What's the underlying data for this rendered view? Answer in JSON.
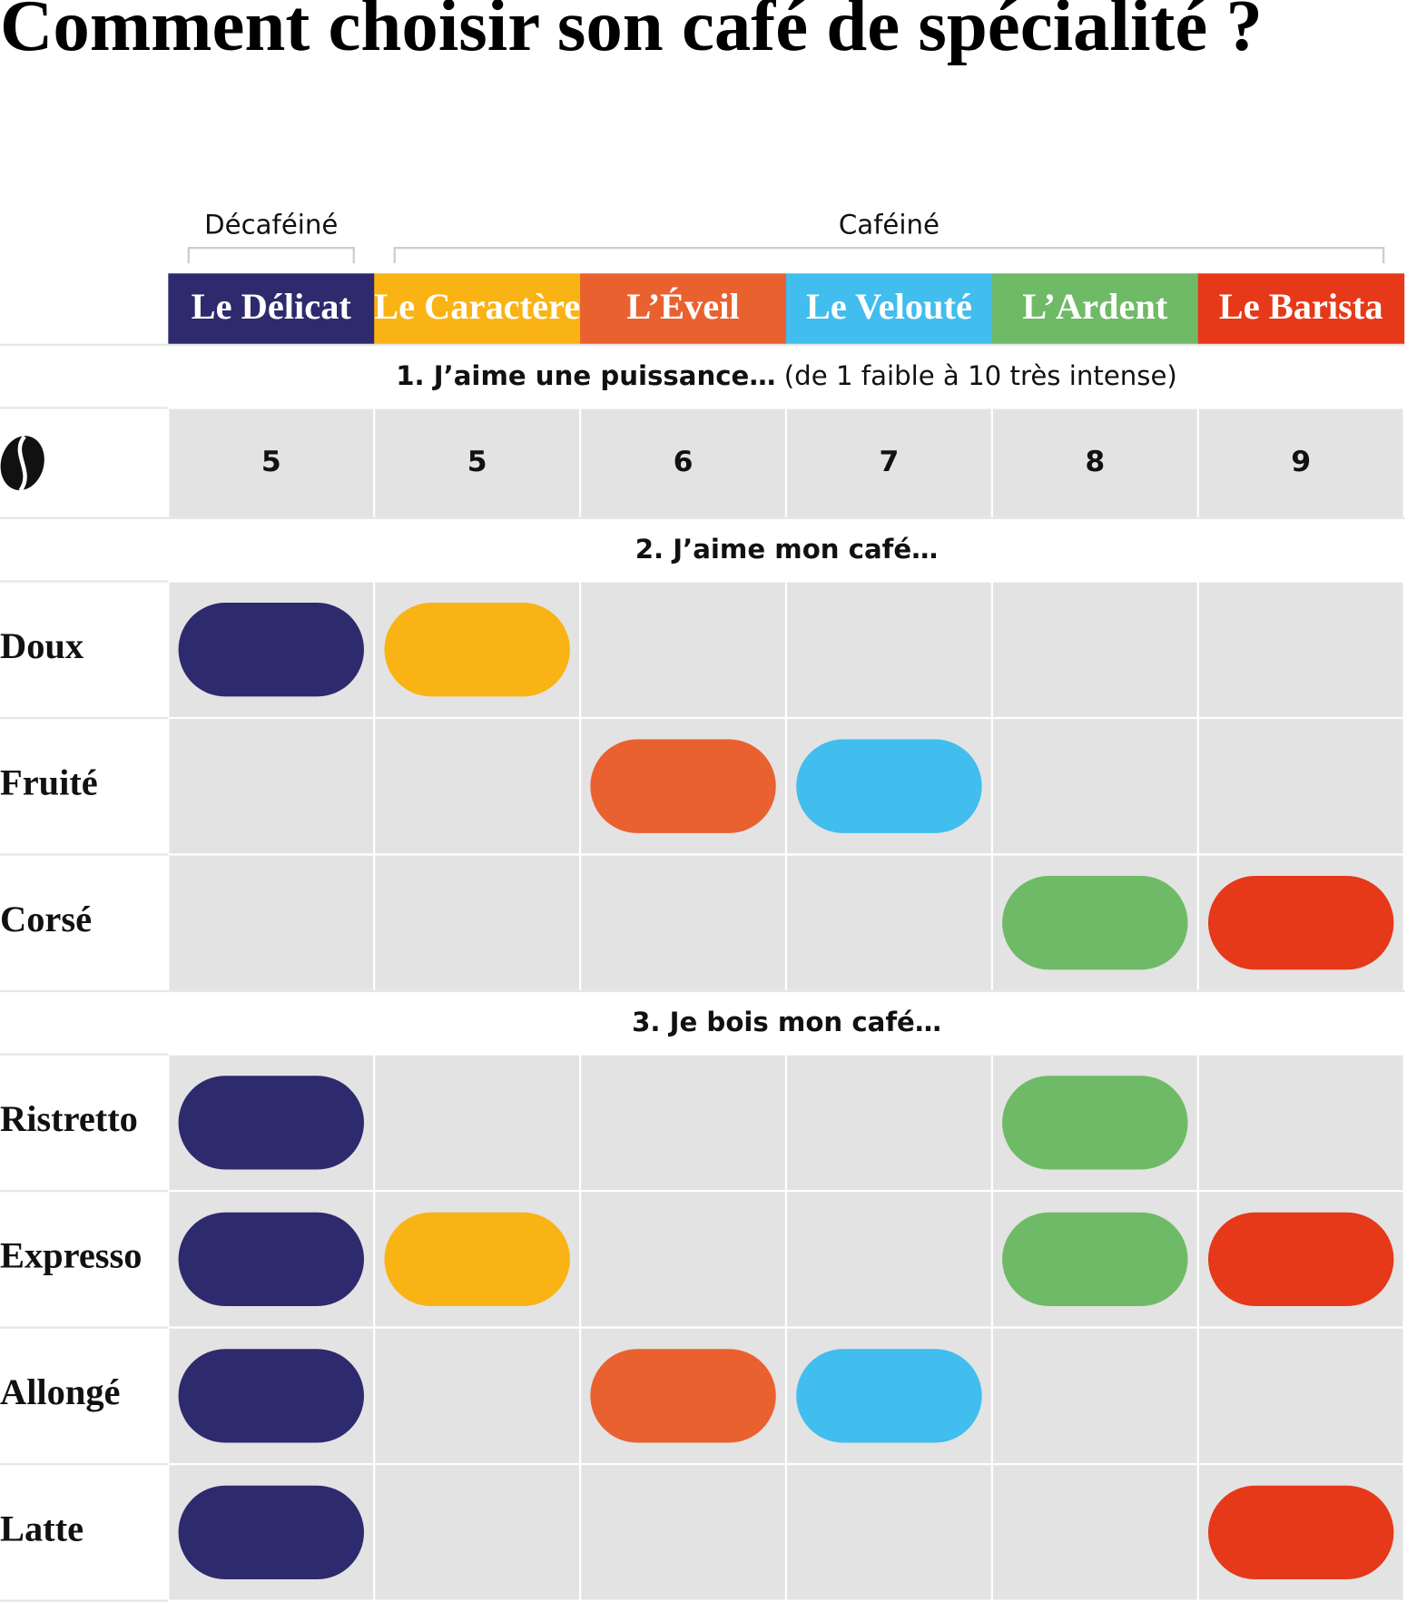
{
  "title": "Comment choisir son café de spécialité ?",
  "groups": [
    {
      "label": "Décaféiné",
      "coffees": [
        {
          "name": "Le Délicat",
          "color": "#2e2a6e"
        }
      ]
    },
    {
      "label": "Caféiné",
      "coffees": [
        {
          "name": "Le Caractère",
          "color": "#f9b314"
        },
        {
          "name": "L’Éveil",
          "color": "#ea6130"
        },
        {
          "name": "Le Velouté",
          "color": "#41bdee"
        },
        {
          "name": "L’Ardent",
          "color": "#6fba66"
        },
        {
          "name": "Le Barista",
          "color": "#e63919"
        }
      ]
    }
  ],
  "sections": [
    {
      "title": "1. J’aime une puissance…",
      "note": "(de 1 faible à 10 très intense)",
      "intensity": [
        5,
        5,
        6,
        7,
        8,
        9
      ]
    },
    {
      "title": "2. J’aime mon café…",
      "rows": [
        {
          "label": "Doux",
          "cells": [
            true,
            true,
            false,
            false,
            false,
            false
          ]
        },
        {
          "label": "Fruité",
          "cells": [
            false,
            false,
            true,
            true,
            false,
            false
          ]
        },
        {
          "label": "Corsé",
          "cells": [
            false,
            false,
            false,
            false,
            true,
            true
          ]
        }
      ]
    },
    {
      "title": "3. Je bois mon café…",
      "rows": [
        {
          "label": "Ristretto",
          "cells": [
            true,
            false,
            false,
            false,
            true,
            false
          ]
        },
        {
          "label": "Expresso",
          "cells": [
            true,
            true,
            false,
            false,
            true,
            true
          ]
        },
        {
          "label": "Allongé",
          "cells": [
            true,
            false,
            true,
            true,
            false,
            false
          ]
        },
        {
          "label": "Latte",
          "cells": [
            true,
            false,
            false,
            false,
            false,
            true
          ]
        }
      ]
    }
  ]
}
